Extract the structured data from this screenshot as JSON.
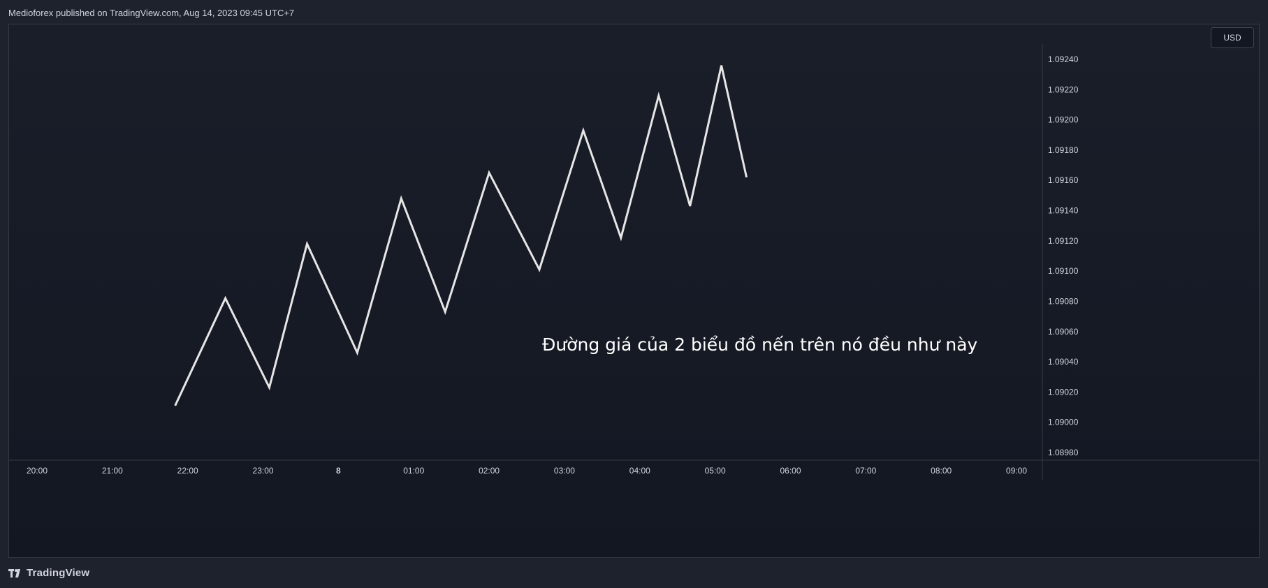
{
  "header": {
    "attribution": "Medioforex published on TradingView.com, Aug 14, 2023 09:45 UTC+7"
  },
  "price_scale": {
    "currency": "USD"
  },
  "annotation": {
    "text": "Đường giá của 2 biểu đồ nến trên nó đều như này"
  },
  "footer": {
    "brand": "TradingView",
    "icon": "tradingview-logo-icon"
  },
  "colors": {
    "background": "#131722",
    "line": "#e6e6e6",
    "axis_text": "#d1d4dc",
    "border": "#363a45"
  },
  "chart_data": {
    "type": "line",
    "title": "",
    "xlabel": "",
    "ylabel": "",
    "x_ticks": [
      "20:00",
      "21:00",
      "22:00",
      "23:00",
      "8",
      "01:00",
      "02:00",
      "03:00",
      "04:00",
      "05:00",
      "06:00",
      "07:00",
      "08:00",
      "09:00"
    ],
    "y_ticks": [
      "1.09240",
      "1.09220",
      "1.09200",
      "1.09180",
      "1.09160",
      "1.09140",
      "1.09120",
      "1.09100",
      "1.09080",
      "1.09060",
      "1.09040",
      "1.09020",
      "1.09000",
      "1.08980"
    ],
    "ylim": [
      1.0898,
      1.0924
    ],
    "grid": false,
    "series": [
      {
        "x": [
          "21:50",
          "22:30",
          "23:05",
          "23:35",
          "00:15",
          "00:50",
          "01:25",
          "02:00",
          "02:40",
          "03:15",
          "03:45",
          "04:15",
          "04:40",
          "05:05",
          "05:25"
        ],
        "values": [
          1.09011,
          1.09082,
          1.09023,
          1.09118,
          1.09046,
          1.09148,
          1.09073,
          1.09165,
          1.09101,
          1.09193,
          1.09122,
          1.09216,
          1.09143,
          1.09236,
          1.09162
        ]
      }
    ]
  }
}
